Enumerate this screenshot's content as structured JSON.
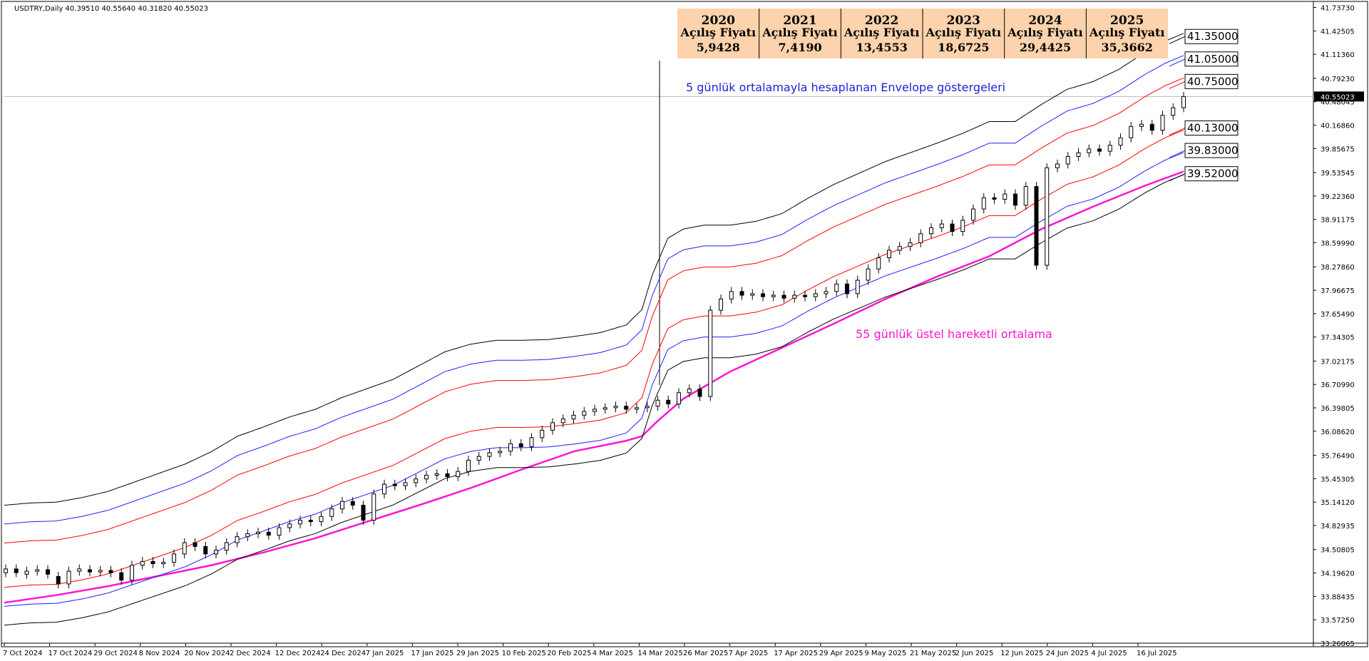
{
  "header": {
    "symbol": "USDTRY,Daily",
    "ohlc": "40.39510 40.55640 40.31820 40.55023"
  },
  "colors": {
    "envelope_outer": "#000000",
    "envelope_mid": "#1f1fff",
    "envelope_inner": "#ff0000",
    "ema": "#ff14d2",
    "table_fill": "#fcd3ac",
    "up_candle": "#ffffff",
    "down_candle": "#000000"
  },
  "price_table": [
    {
      "year": "2020",
      "label": "Açılış Fiyatı",
      "value": "5,9428"
    },
    {
      "year": "2021",
      "label": "Açılış Fiyatı",
      "value": "7,4190"
    },
    {
      "year": "2022",
      "label": "Açılış Fiyatı",
      "value": "13,4553"
    },
    {
      "year": "2023",
      "label": "Açılış Fiyatı",
      "value": "18,6725"
    },
    {
      "year": "2024",
      "label": "Açılış Fiyatı",
      "value": "29,4425"
    },
    {
      "year": "2025",
      "label": "Açılış Fiyatı",
      "value": "35,3662"
    }
  ],
  "annotations": {
    "envelope": "5 günlük ortalamayla hesaplanan Envelope göstergeleri",
    "ema": "55 günlük üstel hareketli ortalama"
  },
  "chart_data": {
    "type": "line",
    "ylim": [
      33.26,
      41.78
    ],
    "y_ticks": [
      "41.73730",
      "41.42505",
      "41.11360",
      "40.79230",
      "40.48045",
      "40.16860",
      "39.85675",
      "39.53545",
      "39.22360",
      "38.91175",
      "38.59990",
      "38.27860",
      "37.96675",
      "37.65490",
      "37.34305",
      "37.02175",
      "36.70990",
      "36.39805",
      "36.08620",
      "35.76490",
      "35.45305",
      "35.14120",
      "34.82935",
      "34.50805",
      "34.19620",
      "33.88435",
      "33.57250",
      "33.26065"
    ],
    "x_ticks": [
      "7 Oct 2024",
      "17 Oct 2024",
      "29 Oct 2024",
      "8 Nov 2024",
      "20 Nov 2024",
      "2 Dec 2024",
      "12 Dec 2024",
      "24 Dec 2024",
      "7 Jan 2025",
      "17 Jan 2025",
      "29 Jan 2025",
      "10 Feb 2025",
      "20 Feb 2025",
      "4 Mar 2025",
      "14 Mar 2025",
      "26 Mar 2025",
      "7 Apr 2025",
      "17 Apr 2025",
      "29 Apr 2025",
      "9 May 2025",
      "21 May 2025",
      "2 Jun 2025",
      "12 Jun 2025",
      "24 Jun 2025",
      "4 Jul 2025",
      "16 Jul 2025"
    ],
    "current_price": "40.55023",
    "current_value": 40.55023,
    "levels": [
      {
        "label": "41.35000",
        "value": 41.35
      },
      {
        "label": "41.05000",
        "value": 41.05
      },
      {
        "label": "40.75000",
        "value": 40.75
      },
      {
        "label": "40.13000",
        "value": 40.13
      },
      {
        "label": "39.83000",
        "value": 39.83
      },
      {
        "label": "39.52000",
        "value": 39.52
      }
    ],
    "ema_points": [
      [
        0,
        33.8
      ],
      [
        20,
        33.9
      ],
      [
        40,
        34.02
      ],
      [
        60,
        34.16
      ],
      [
        80,
        34.3
      ],
      [
        100,
        34.47
      ],
      [
        120,
        34.66
      ],
      [
        140,
        34.88
      ],
      [
        160,
        35.1
      ],
      [
        180,
        35.33
      ],
      [
        200,
        35.58
      ],
      [
        220,
        35.82
      ],
      [
        240,
        35.96
      ],
      [
        246,
        36.02
      ],
      [
        252,
        36.22
      ],
      [
        262,
        36.52
      ],
      [
        280,
        36.88
      ],
      [
        300,
        37.2
      ],
      [
        320,
        37.52
      ],
      [
        340,
        37.85
      ],
      [
        360,
        38.15
      ],
      [
        380,
        38.42
      ],
      [
        390,
        38.6
      ],
      [
        400,
        38.78
      ],
      [
        420,
        39.08
      ],
      [
        440,
        39.36
      ],
      [
        455,
        39.55
      ]
    ],
    "envelope_center_points": [
      [
        0,
        34.3
      ],
      [
        10,
        34.33
      ],
      [
        20,
        34.34
      ],
      [
        30,
        34.4
      ],
      [
        40,
        34.48
      ],
      [
        50,
        34.6
      ],
      [
        60,
        34.72
      ],
      [
        70,
        34.84
      ],
      [
        80,
        35.0
      ],
      [
        90,
        35.2
      ],
      [
        100,
        35.32
      ],
      [
        110,
        35.45
      ],
      [
        120,
        35.55
      ],
      [
        130,
        35.7
      ],
      [
        140,
        35.82
      ],
      [
        150,
        35.94
      ],
      [
        160,
        36.12
      ],
      [
        170,
        36.3
      ],
      [
        180,
        36.4
      ],
      [
        190,
        36.45
      ],
      [
        200,
        36.45
      ],
      [
        210,
        36.46
      ],
      [
        220,
        36.5
      ],
      [
        230,
        36.55
      ],
      [
        240,
        36.65
      ],
      [
        246,
        36.85
      ],
      [
        250,
        37.3
      ],
      [
        256,
        37.78
      ],
      [
        262,
        37.9
      ],
      [
        270,
        37.95
      ],
      [
        280,
        37.95
      ],
      [
        290,
        38.0
      ],
      [
        300,
        38.1
      ],
      [
        310,
        38.3
      ],
      [
        320,
        38.48
      ],
      [
        330,
        38.63
      ],
      [
        340,
        38.78
      ],
      [
        350,
        38.9
      ],
      [
        360,
        39.02
      ],
      [
        370,
        39.15
      ],
      [
        380,
        39.3
      ],
      [
        390,
        39.3
      ],
      [
        400,
        39.52
      ],
      [
        410,
        39.72
      ],
      [
        420,
        39.82
      ],
      [
        430,
        39.98
      ],
      [
        440,
        40.2
      ],
      [
        448,
        40.35
      ],
      [
        455,
        40.45
      ]
    ],
    "envelope_offset_pct": [
      2.33,
      1.6,
      0.86
    ],
    "candles": [
      [
        0,
        34.2,
        34.25
      ],
      [
        1,
        34.25,
        34.2
      ],
      [
        2,
        34.18,
        34.22
      ],
      [
        3,
        34.22,
        34.24
      ],
      [
        4,
        34.24,
        34.18
      ],
      [
        5,
        34.15,
        34.05
      ],
      [
        6,
        34.05,
        34.22
      ],
      [
        7,
        34.22,
        34.25
      ],
      [
        8,
        34.24,
        34.21
      ],
      [
        9,
        34.21,
        34.23
      ],
      [
        10,
        34.23,
        34.2
      ],
      [
        11,
        34.2,
        34.1
      ],
      [
        12,
        34.1,
        34.3
      ],
      [
        13,
        34.3,
        34.35
      ],
      [
        14,
        34.35,
        34.32
      ],
      [
        15,
        34.32,
        34.34
      ],
      [
        16,
        34.34,
        34.45
      ],
      [
        17,
        34.45,
        34.6
      ],
      [
        18,
        34.6,
        34.55
      ],
      [
        19,
        34.55,
        34.45
      ],
      [
        20,
        34.45,
        34.5
      ],
      [
        21,
        34.5,
        34.6
      ],
      [
        22,
        34.6,
        34.68
      ],
      [
        23,
        34.68,
        34.72
      ],
      [
        24,
        34.72,
        34.74
      ],
      [
        25,
        34.74,
        34.7
      ],
      [
        26,
        34.7,
        34.8
      ],
      [
        27,
        34.8,
        34.85
      ],
      [
        28,
        34.85,
        34.9
      ],
      [
        29,
        34.9,
        34.88
      ],
      [
        30,
        34.88,
        34.95
      ],
      [
        31,
        34.95,
        35.05
      ],
      [
        32,
        35.05,
        35.15
      ],
      [
        33,
        35.15,
        35.1
      ],
      [
        34,
        35.1,
        34.9
      ],
      [
        35,
        34.9,
        35.25
      ],
      [
        36,
        35.25,
        35.38
      ],
      [
        37,
        35.38,
        35.36
      ],
      [
        38,
        35.36,
        35.4
      ],
      [
        39,
        35.4,
        35.45
      ],
      [
        40,
        35.45,
        35.5
      ],
      [
        41,
        35.5,
        35.52
      ],
      [
        42,
        35.52,
        35.48
      ],
      [
        43,
        35.48,
        35.55
      ],
      [
        44,
        35.55,
        35.7
      ],
      [
        45,
        35.7,
        35.75
      ],
      [
        46,
        35.75,
        35.8
      ],
      [
        47,
        35.8,
        35.82
      ],
      [
        48,
        35.82,
        35.92
      ],
      [
        49,
        35.92,
        35.88
      ],
      [
        50,
        35.88,
        36.0
      ],
      [
        51,
        36.0,
        36.1
      ],
      [
        52,
        36.1,
        36.2
      ],
      [
        53,
        36.2,
        36.25
      ],
      [
        54,
        36.25,
        36.3
      ],
      [
        55,
        36.3,
        36.35
      ],
      [
        56,
        36.35,
        36.38
      ],
      [
        57,
        36.38,
        36.4
      ],
      [
        58,
        36.4,
        36.42
      ],
      [
        59,
        36.42,
        36.38
      ],
      [
        60,
        36.38,
        36.4
      ],
      [
        61,
        36.4,
        36.42
      ],
      [
        62,
        36.42,
        36.5
      ],
      [
        63,
        36.5,
        36.45
      ],
      [
        64,
        36.45,
        36.6
      ],
      [
        65,
        36.6,
        36.65
      ],
      [
        66,
        36.65,
        36.55
      ],
      [
        67,
        36.55,
        37.7
      ],
      [
        68,
        37.7,
        37.85
      ],
      [
        69,
        37.85,
        37.95
      ],
      [
        70,
        37.95,
        37.9
      ],
      [
        71,
        37.9,
        37.92
      ],
      [
        72,
        37.92,
        37.88
      ],
      [
        73,
        37.88,
        37.9
      ],
      [
        74,
        37.9,
        37.86
      ],
      [
        75,
        37.86,
        37.9
      ],
      [
        76,
        37.9,
        37.88
      ],
      [
        77,
        37.88,
        37.92
      ],
      [
        78,
        37.92,
        37.95
      ],
      [
        79,
        37.95,
        38.05
      ],
      [
        80,
        38.05,
        37.92
      ],
      [
        81,
        37.92,
        38.1
      ],
      [
        82,
        38.1,
        38.25
      ],
      [
        83,
        38.25,
        38.4
      ],
      [
        84,
        38.4,
        38.5
      ],
      [
        85,
        38.5,
        38.55
      ],
      [
        86,
        38.55,
        38.6
      ],
      [
        87,
        38.6,
        38.72
      ],
      [
        88,
        38.72,
        38.8
      ],
      [
        89,
        38.8,
        38.85
      ],
      [
        90,
        38.85,
        38.75
      ],
      [
        91,
        38.75,
        38.9
      ],
      [
        92,
        38.9,
        39.05
      ],
      [
        93,
        39.05,
        39.2
      ],
      [
        94,
        39.2,
        39.18
      ],
      [
        95,
        39.18,
        39.25
      ],
      [
        96,
        39.25,
        39.1
      ],
      [
        97,
        39.1,
        39.35
      ],
      [
        98,
        39.35,
        38.3
      ],
      [
        99,
        38.3,
        39.6
      ],
      [
        100,
        39.6,
        39.65
      ],
      [
        101,
        39.65,
        39.75
      ],
      [
        102,
        39.75,
        39.8
      ],
      [
        103,
        39.8,
        39.85
      ],
      [
        104,
        39.85,
        39.82
      ],
      [
        105,
        39.82,
        39.9
      ],
      [
        106,
        39.9,
        40.0
      ],
      [
        107,
        40.0,
        40.15
      ],
      [
        108,
        40.15,
        40.18
      ],
      [
        109,
        40.18,
        40.1
      ],
      [
        110,
        40.1,
        40.3
      ],
      [
        111,
        40.3,
        40.4
      ],
      [
        112,
        40.4,
        40.55
      ]
    ]
  }
}
